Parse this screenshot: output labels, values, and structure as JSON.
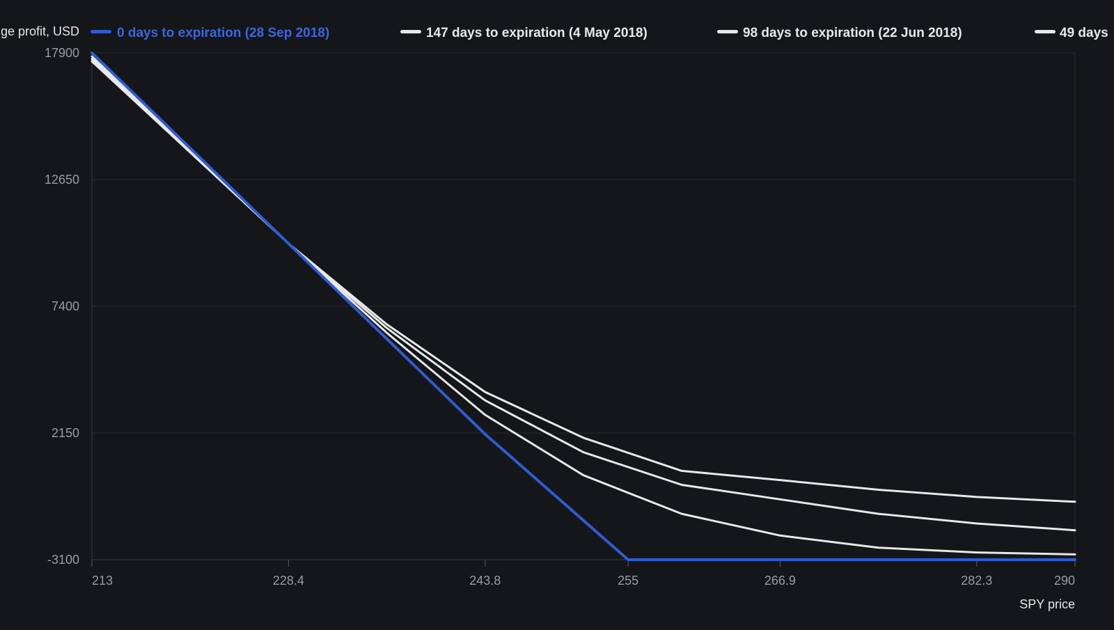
{
  "chart_data": {
    "type": "line",
    "title": "",
    "ylabel": "ge profit, USD",
    "xlabel": "SPY price",
    "xlim": [
      213,
      290
    ],
    "ylim": [
      -3100,
      17900
    ],
    "x_ticks": [
      213,
      228.4,
      243.8,
      255,
      266.9,
      282.3,
      290
    ],
    "y_ticks": [
      17900,
      12650,
      7400,
      2150,
      -3100
    ],
    "grid": true,
    "legend_position": "top",
    "series": [
      {
        "name": "0 days to expiration (28 Sep 2018)",
        "color": "#2f5bd3",
        "x": [
          213,
          228.4,
          243.8,
          255,
          266.9,
          282.3,
          290
        ],
        "y": [
          17900,
          10000,
          2100,
          -3100,
          -3100,
          -3100,
          -3100
        ]
      },
      {
        "name": "147 days to expiration (4 May 2018)",
        "color": "#e8e8e8",
        "x": [
          213,
          228.4,
          236.1,
          243.8,
          251.5,
          259.2,
          266.9,
          274.6,
          282.3,
          290
        ],
        "y": [
          17550,
          10000,
          6650,
          3850,
          1950,
          580,
          200,
          -200,
          -500,
          -700
        ]
      },
      {
        "name": "98 days to expiration (22 Jun 2018)",
        "color": "#e8e8e8",
        "x": [
          213,
          228.4,
          236.1,
          243.8,
          251.5,
          259.2,
          266.9,
          274.6,
          282.3,
          290
        ],
        "y": [
          17650,
          10000,
          6500,
          3500,
          1350,
          0,
          -600,
          -1200,
          -1600,
          -1880
        ]
      },
      {
        "name": "49 days",
        "color": "#e8e8e8",
        "x": [
          213,
          228.4,
          236.1,
          243.8,
          251.5,
          259.2,
          266.9,
          274.6,
          282.3,
          290
        ],
        "y": [
          17750,
          10000,
          6300,
          2900,
          400,
          -1200,
          -2100,
          -2600,
          -2800,
          -2880
        ]
      }
    ]
  }
}
